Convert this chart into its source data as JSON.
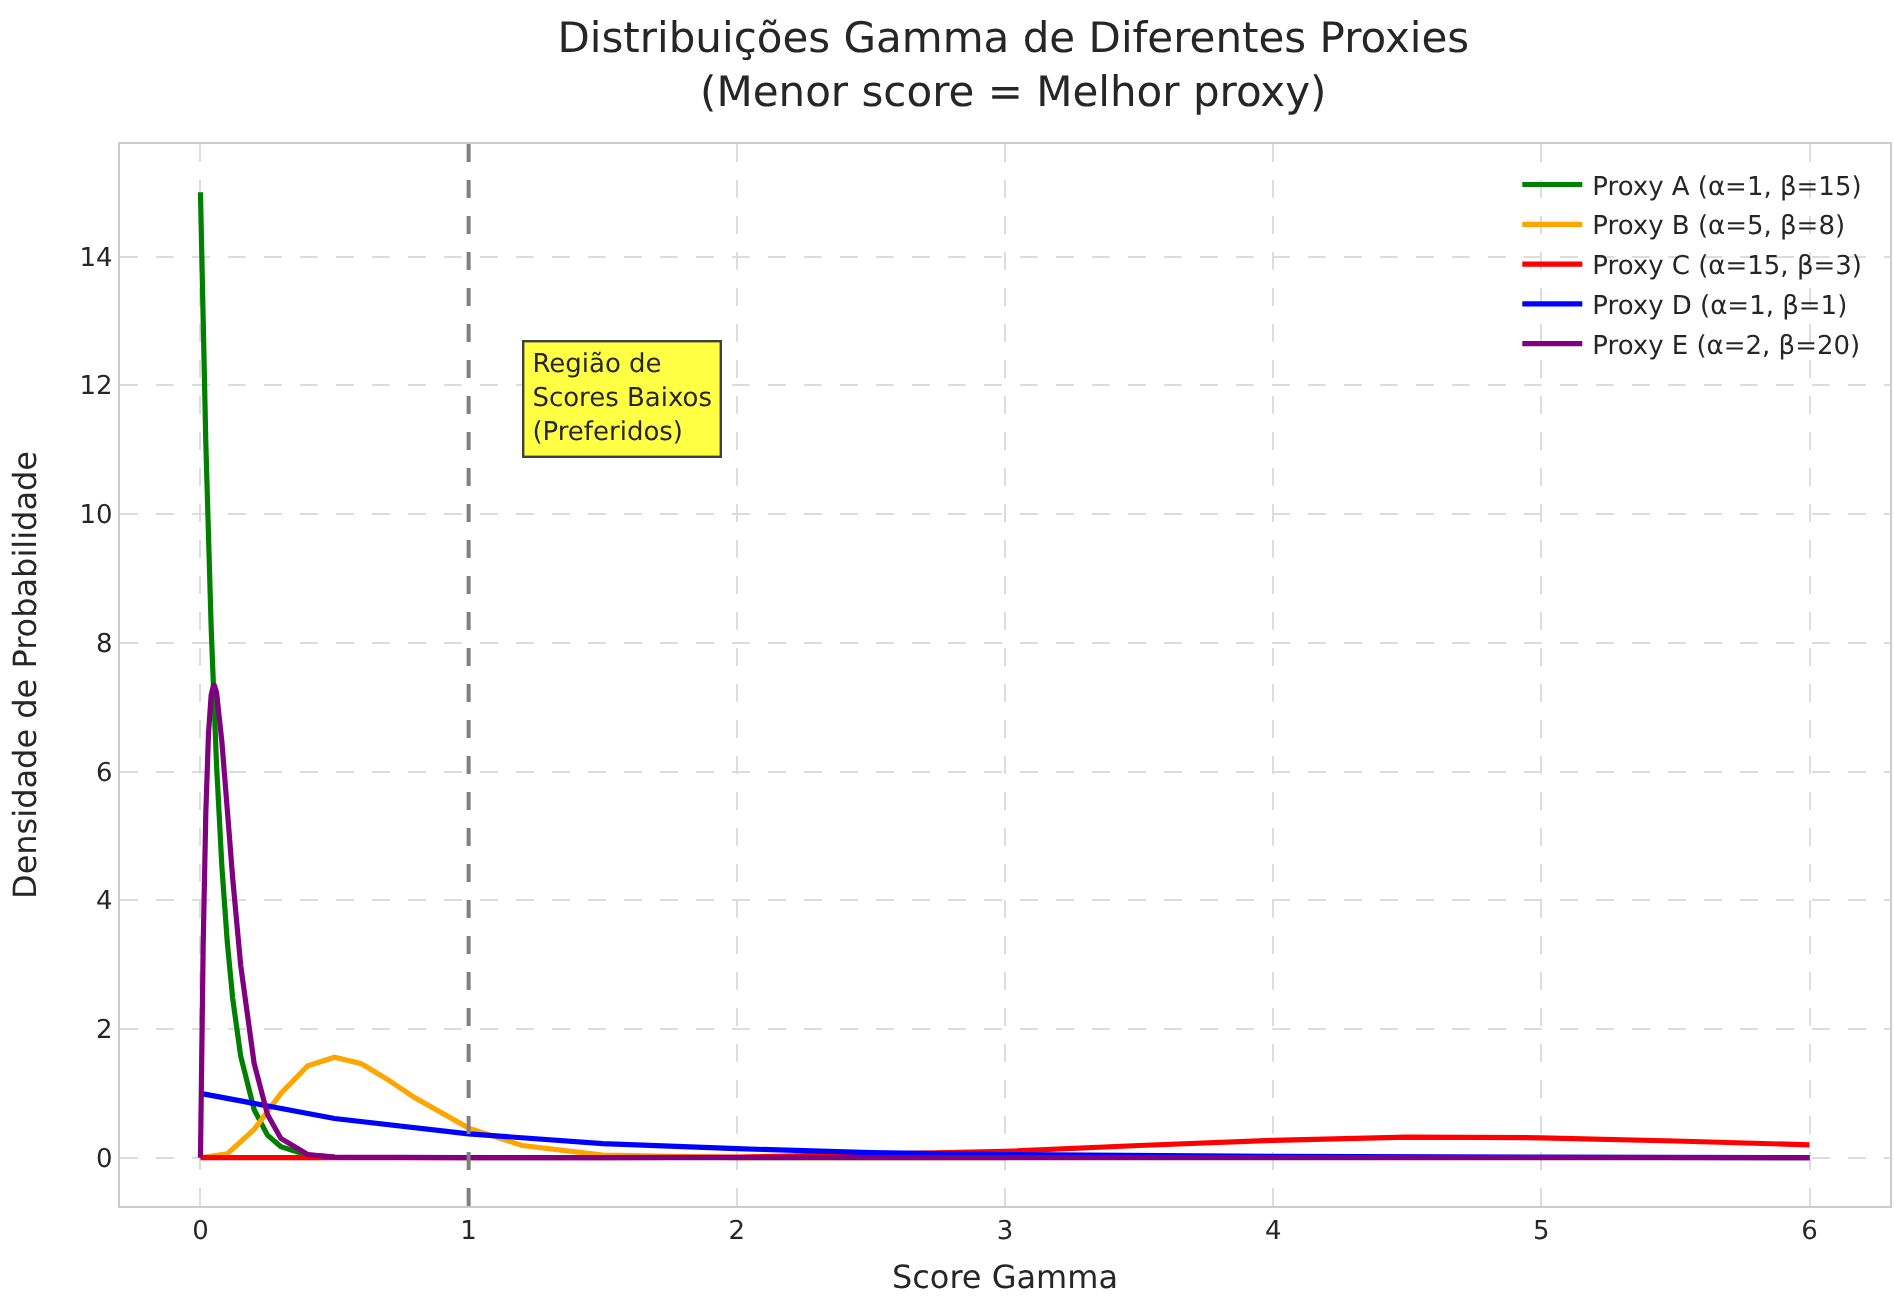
{
  "chart_data": {
    "type": "line",
    "title": "Distribuições Gamma de Diferentes Proxies\n(Menor score = Melhor proxy)",
    "xlabel": "Score Gamma",
    "ylabel": "Densidade de Probabilidade",
    "xlim": [
      -0.3,
      6.3
    ],
    "ylim": [
      -0.75,
      15.75
    ],
    "xticks": [
      0,
      1,
      2,
      3,
      4,
      5,
      6
    ],
    "yticks": [
      0,
      2,
      4,
      6,
      8,
      10,
      12,
      14
    ],
    "grid": true,
    "legend": "top right",
    "marker": "none",
    "line_style": "solid",
    "ref_lines": [
      {
        "axis": "x",
        "value": 1,
        "color": "#808080",
        "line_style": "dashed"
      }
    ],
    "annotations": [
      "Região de\nScores Baixos\n(Preferidos)"
    ],
    "series": [
      {
        "name": "Proxy A (α=1, β=15)",
        "color": "#008000",
        "x": [
          0,
          0.02,
          0.04,
          0.06,
          0.08,
          0.1,
          0.12,
          0.15,
          0.2,
          0.25,
          0.3,
          0.4,
          0.5
        ],
        "values": [
          15,
          11.11,
          8.23,
          6.1,
          4.52,
          3.35,
          2.48,
          1.58,
          0.75,
          0.35,
          0.17,
          0.04,
          0.01
        ]
      },
      {
        "name": "Proxy B (α=5, β=8)",
        "color": "#ffa500",
        "x": [
          0,
          0.1,
          0.2,
          0.3,
          0.4,
          0.5,
          0.6,
          0.7,
          0.8,
          1,
          1.2,
          1.5,
          2,
          3
        ],
        "values": [
          0,
          0.06,
          0.44,
          1,
          1.43,
          1.56,
          1.46,
          1.21,
          0.93,
          0.46,
          0.19,
          0.04,
          0,
          0
        ]
      },
      {
        "name": "Proxy C (α=15, β=3)",
        "color": "#ff0000",
        "x": [
          0,
          1,
          1.5,
          2,
          3,
          3.5,
          4,
          4.5,
          5,
          5.5,
          6
        ],
        "values": [
          0,
          0,
          0,
          0.01,
          0.1,
          0.19,
          0.27,
          0.32,
          0.31,
          0.26,
          0.2
        ]
      },
      {
        "name": "Proxy D (α=1, β=1)",
        "color": "#0000ff",
        "x": [
          0,
          0.5,
          1,
          1.5,
          2,
          2.5,
          3,
          4,
          5,
          6
        ],
        "values": [
          1,
          0.61,
          0.37,
          0.22,
          0.14,
          0.08,
          0.05,
          0.02,
          0.01,
          0
        ]
      },
      {
        "name": "Proxy E (α=2, β=20)",
        "color": "#800080",
        "x": [
          0,
          0.01,
          0.02,
          0.03,
          0.04,
          0.05,
          0.06,
          0.08,
          0.1,
          0.12,
          0.15,
          0.2,
          0.25,
          0.3,
          0.4,
          0.5,
          1,
          2,
          3,
          4,
          5,
          6
        ],
        "values": [
          0,
          3.27,
          5.36,
          6.59,
          7.19,
          7.36,
          7.23,
          6.46,
          5.41,
          4.35,
          2.99,
          1.47,
          0.67,
          0.3,
          0.05,
          0.01,
          0,
          0,
          0,
          0,
          0,
          0
        ]
      }
    ]
  }
}
